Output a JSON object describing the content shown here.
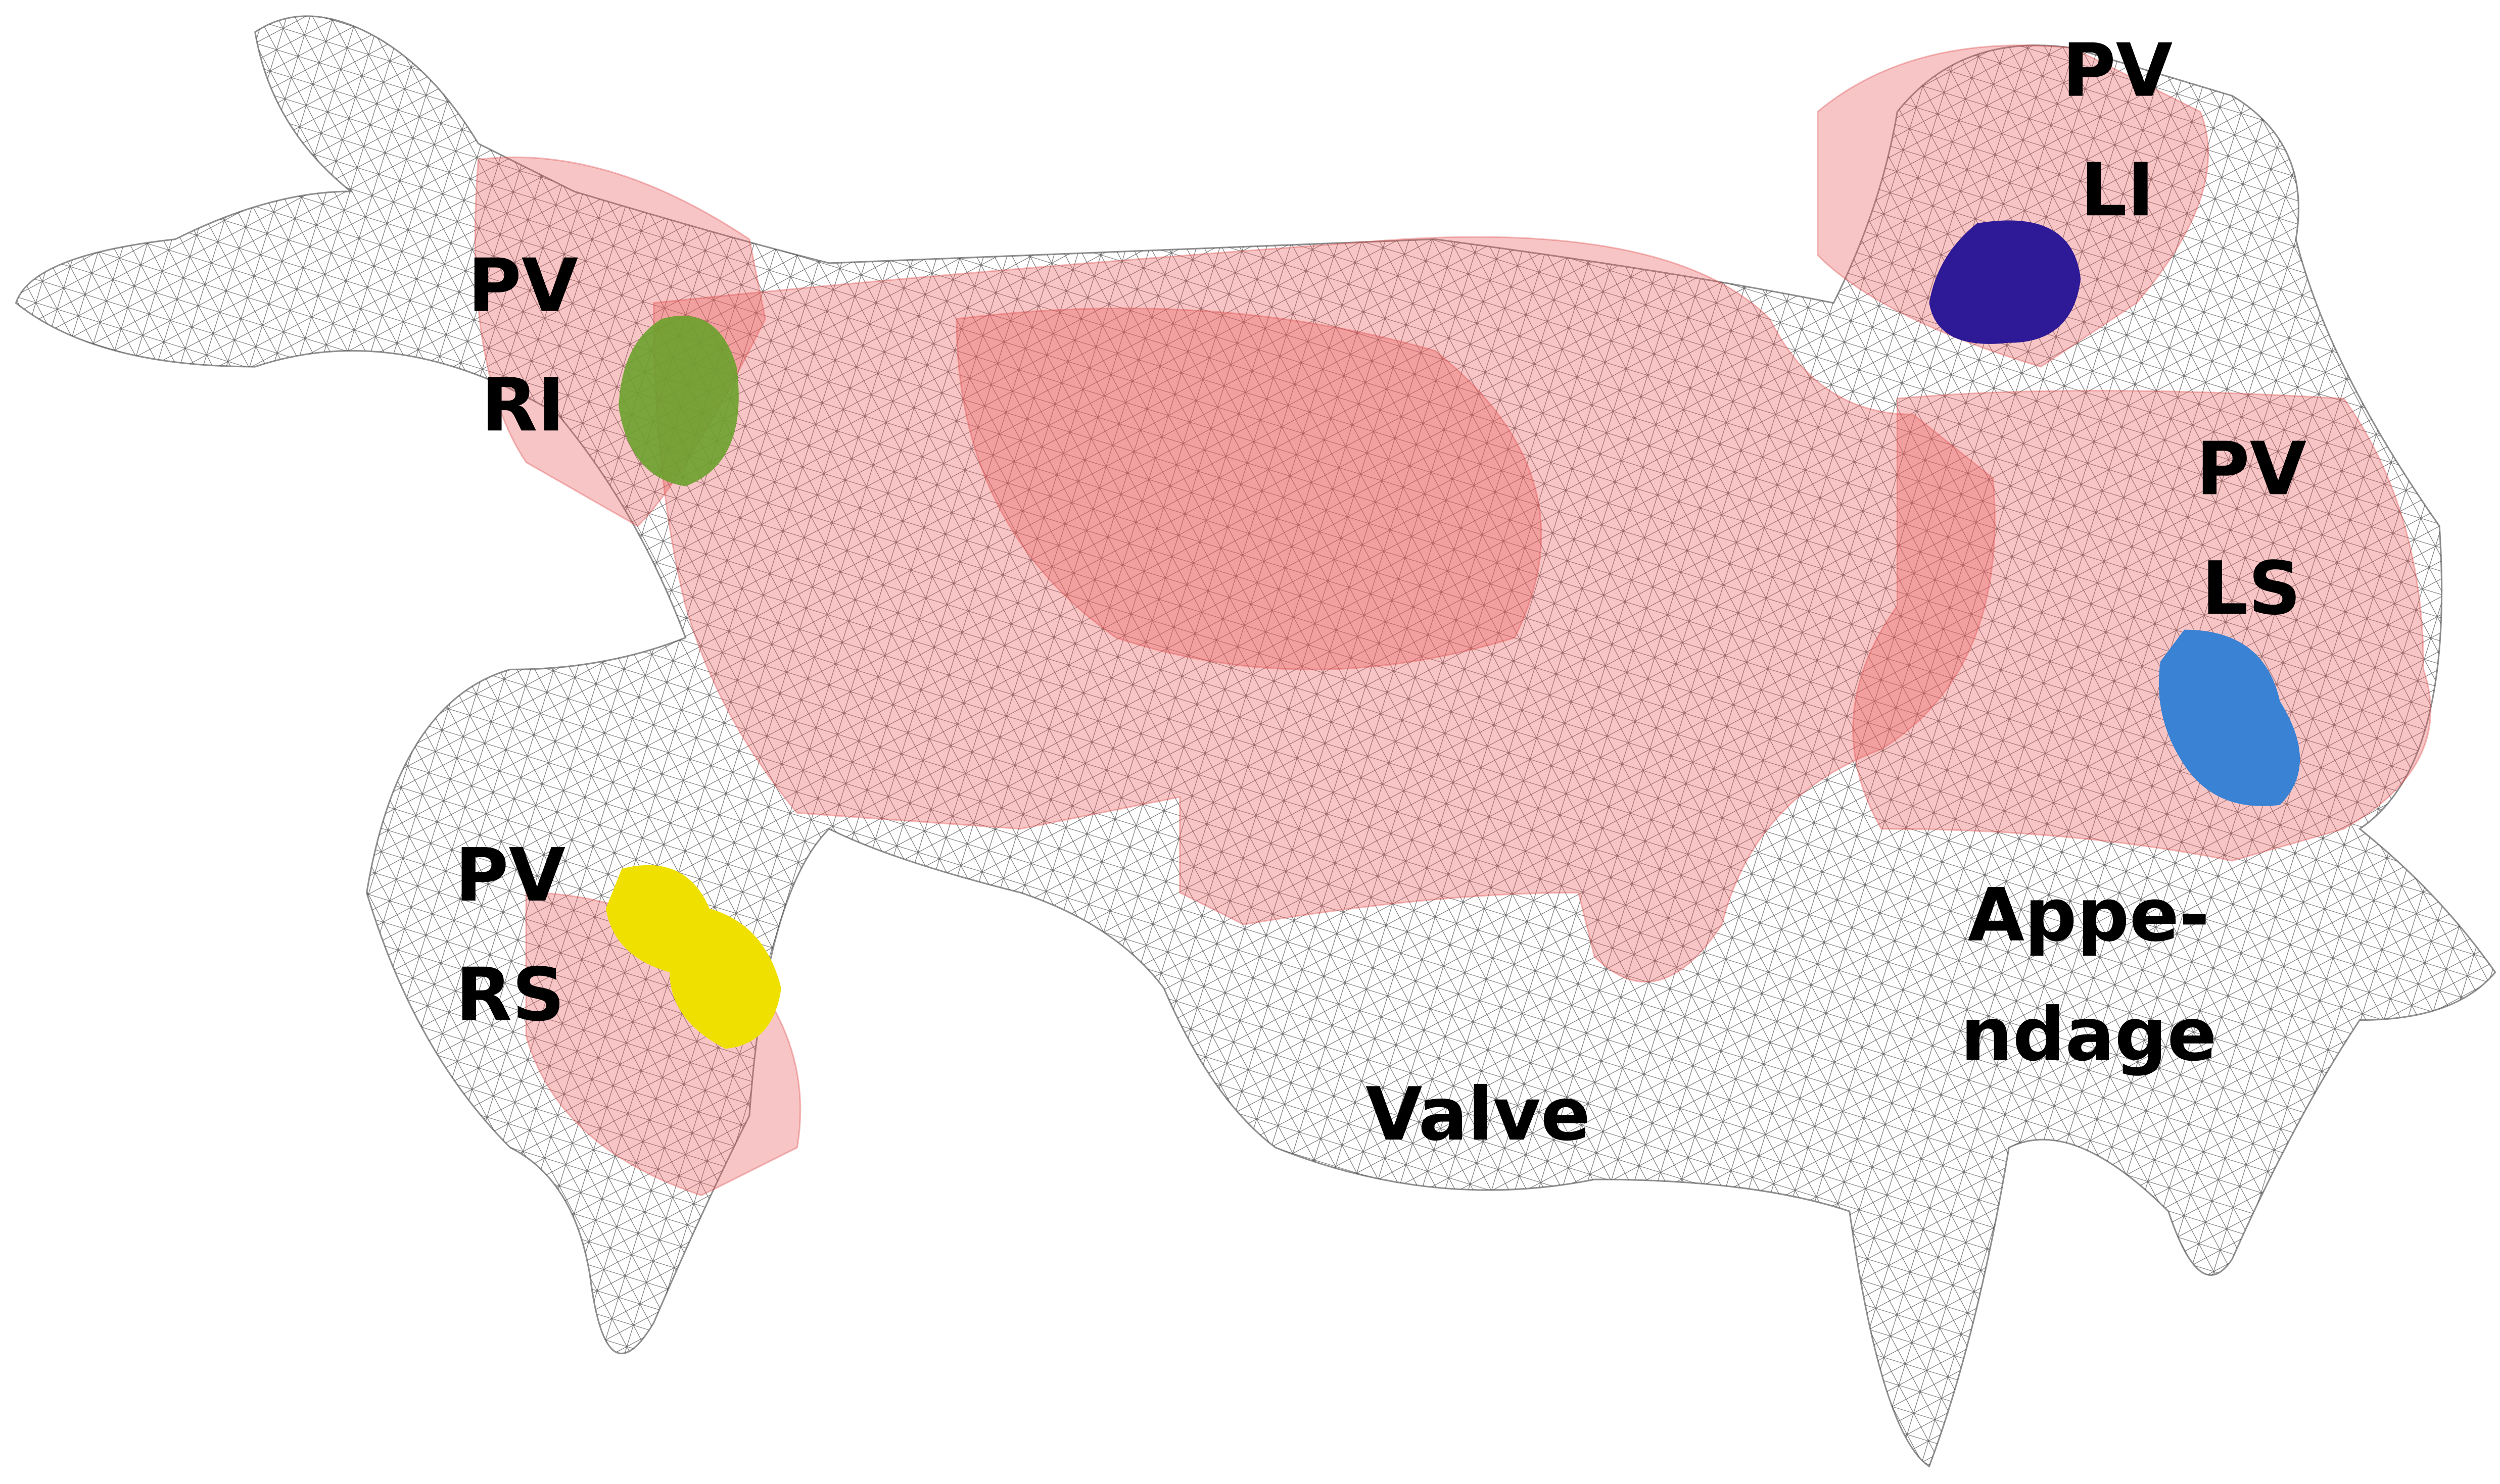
{
  "labels": [
    {
      "lines": [
        "PV",
        "RI"
      ]
    },
    {
      "lines": [
        "PV",
        "LI"
      ]
    },
    {
      "lines": [
        "PV",
        "LS"
      ]
    },
    {
      "lines": [
        "PV",
        "RS"
      ]
    },
    {
      "lines": [
        "Appe-",
        "ndage"
      ]
    },
    {
      "lines": [
        "Valve"
      ]
    }
  ]
}
